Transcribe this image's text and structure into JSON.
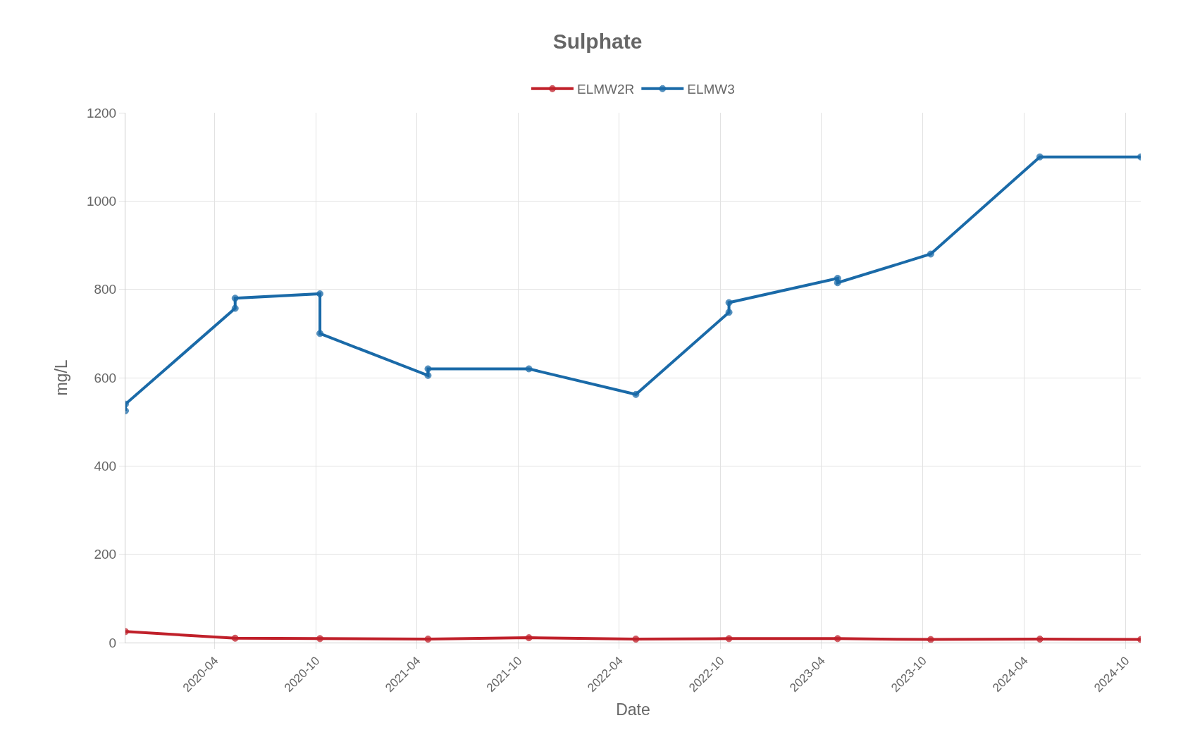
{
  "chart_data": {
    "type": "line",
    "title": "Sulphate",
    "xlabel": "Date",
    "ylabel": "mg/L",
    "xlim": [
      "2019-10-23",
      "2024-10-28"
    ],
    "xticks": [
      {
        "value": "2020-04-01",
        "label": "2020-04"
      },
      {
        "value": "2020-10-01",
        "label": "2020-10"
      },
      {
        "value": "2021-04-01",
        "label": "2021-04"
      },
      {
        "value": "2021-10-01",
        "label": "2021-10"
      },
      {
        "value": "2022-04-01",
        "label": "2022-04"
      },
      {
        "value": "2022-10-01",
        "label": "2022-10"
      },
      {
        "value": "2023-04-01",
        "label": "2023-04"
      },
      {
        "value": "2023-10-01",
        "label": "2023-10"
      },
      {
        "value": "2024-04-01",
        "label": "2024-04"
      },
      {
        "value": "2024-10-01",
        "label": "2024-10"
      }
    ],
    "ylim": [
      0,
      1200
    ],
    "yticks": [
      0,
      200,
      400,
      600,
      800,
      1000,
      1200
    ],
    "grid": true,
    "legend": "top",
    "marker": "circle",
    "line_style": "solid",
    "series": [
      {
        "name": "ELMW2R",
        "color": "#c0202a",
        "x": [
          "2019-10-23",
          "2020-05-08",
          "2020-10-08",
          "2021-04-21",
          "2021-10-20",
          "2022-05-01",
          "2022-10-16",
          "2023-04-30",
          "2023-10-15",
          "2024-04-29",
          "2024-10-28"
        ],
        "values": [
          25,
          10,
          9,
          8,
          11,
          8,
          9,
          9,
          7,
          8,
          7
        ]
      },
      {
        "name": "ELMW3",
        "color": "#1a6aa8",
        "x": [
          "2019-10-23",
          "2019-10-23",
          "2020-05-08",
          "2020-05-08",
          "2020-10-08",
          "2020-10-08",
          "2021-04-21",
          "2021-04-21",
          "2021-10-20",
          "2022-05-01",
          "2022-10-16",
          "2022-10-16",
          "2023-04-30",
          "2023-04-30",
          "2023-10-15",
          "2024-04-29",
          "2024-10-28"
        ],
        "values": [
          525,
          540,
          757,
          780,
          790,
          700,
          605,
          620,
          620,
          562,
          748,
          770,
          825,
          815,
          880,
          1100,
          1100
        ]
      }
    ]
  }
}
